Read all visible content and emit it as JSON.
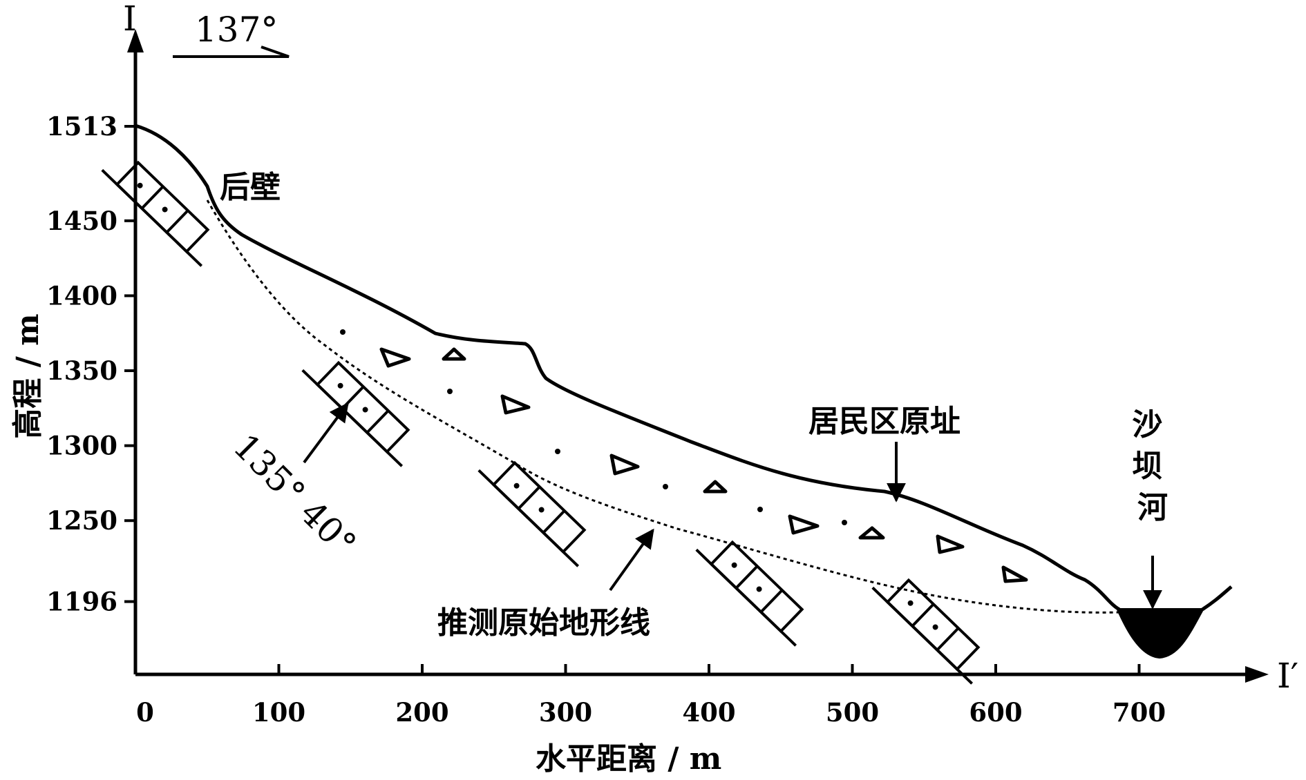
{
  "figure": {
    "section_start_label": "I",
    "section_end_label": "I′",
    "direction_label": "137°",
    "dip_label": "135° 40°",
    "x_axis": {
      "title": "水平距离 / m",
      "ticks": [
        {
          "value": 0,
          "label": "0"
        },
        {
          "value": 100,
          "label": "100"
        },
        {
          "value": 200,
          "label": "200"
        },
        {
          "value": 300,
          "label": "300"
        },
        {
          "value": 400,
          "label": "400"
        },
        {
          "value": 500,
          "label": "500"
        },
        {
          "value": 600,
          "label": "600"
        },
        {
          "value": 700,
          "label": "700"
        }
      ]
    },
    "y_axis": {
      "title": "高程 / m",
      "ticks": [
        {
          "value": 1513,
          "label": "1513"
        },
        {
          "value": 1450,
          "label": "1450"
        },
        {
          "value": 1400,
          "label": "1400"
        },
        {
          "value": 1350,
          "label": "1350"
        },
        {
          "value": 1300,
          "label": "1300"
        },
        {
          "value": 1250,
          "label": "1250"
        },
        {
          "value": 1196,
          "label": "1196"
        }
      ]
    },
    "labels": {
      "back_wall": "后壁",
      "former_settlement": "居民区原址",
      "river": "沙坝河",
      "original_terrain": "推测原始地形线"
    }
  }
}
